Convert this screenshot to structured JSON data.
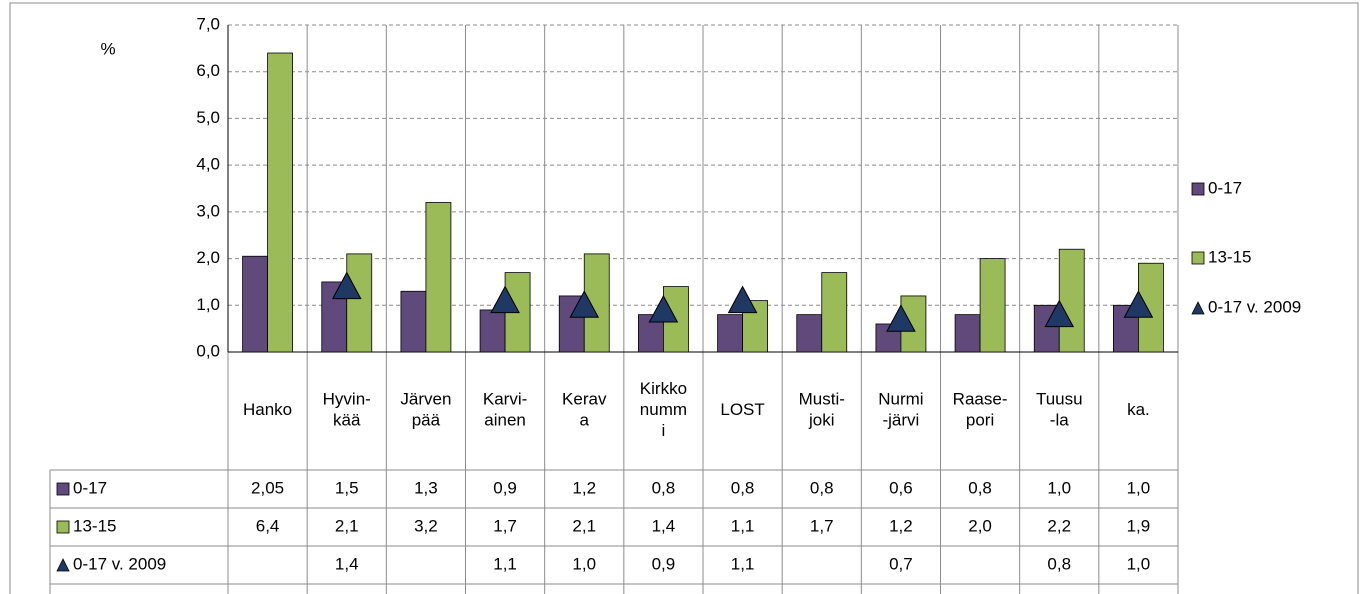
{
  "chart_data": {
    "type": "bar",
    "y_unit": "%",
    "categories": [
      "Hanko",
      "Hyvin-\nkää",
      "Järven\npää",
      "Karvi-\nainen",
      "Kerav\na",
      "Kirkko\nnumm\ni",
      "LOST",
      "Musti-\njoki",
      "Nurmi\n-järvi",
      "Raase-\npori",
      "Tuusu\n-la",
      "ka."
    ],
    "series": [
      {
        "name": "0-17",
        "color": "#604a7b",
        "marker": "bar",
        "values": [
          2.05,
          1.5,
          1.3,
          0.9,
          1.2,
          0.8,
          0.8,
          0.8,
          0.6,
          0.8,
          1.0,
          1.0
        ],
        "value_labels": [
          "2,05",
          "1,5",
          "1,3",
          "0,9",
          "1,2",
          "0,8",
          "0,8",
          "0,8",
          "0,6",
          "0,8",
          "1,0",
          "1,0"
        ]
      },
      {
        "name": "13-15",
        "color": "#9bbb59",
        "marker": "bar",
        "values": [
          6.4,
          2.1,
          3.2,
          1.7,
          2.1,
          1.4,
          1.1,
          1.7,
          1.2,
          2.0,
          2.2,
          1.9
        ],
        "value_labels": [
          "6,4",
          "2,1",
          "3,2",
          "1,7",
          "2,1",
          "1,4",
          "1,1",
          "1,7",
          "1,2",
          "2,0",
          "2,2",
          "1,9"
        ]
      },
      {
        "name": "0-17 v. 2009",
        "color": "#1f3864",
        "marker": "triangle",
        "values": [
          null,
          1.4,
          null,
          1.1,
          1.0,
          0.9,
          1.1,
          null,
          0.7,
          null,
          0.8,
          1.0
        ],
        "value_labels": [
          null,
          "1,4",
          null,
          "1,1",
          "1,0",
          "0,9",
          "1,1",
          null,
          "0,7",
          null,
          "0,8",
          "1,0"
        ]
      }
    ],
    "ylim": [
      0,
      7
    ],
    "yticks": [
      {
        "value": 0,
        "label": "0,0"
      },
      {
        "value": 1,
        "label": "1,0"
      },
      {
        "value": 2,
        "label": "2,0"
      },
      {
        "value": 3,
        "label": "3,0"
      },
      {
        "value": 4,
        "label": "4,0"
      },
      {
        "value": 5,
        "label": "5,0"
      },
      {
        "value": 6,
        "label": "6,0"
      },
      {
        "value": 7,
        "label": "7,0"
      }
    ],
    "grid": true,
    "legend": "right"
  }
}
